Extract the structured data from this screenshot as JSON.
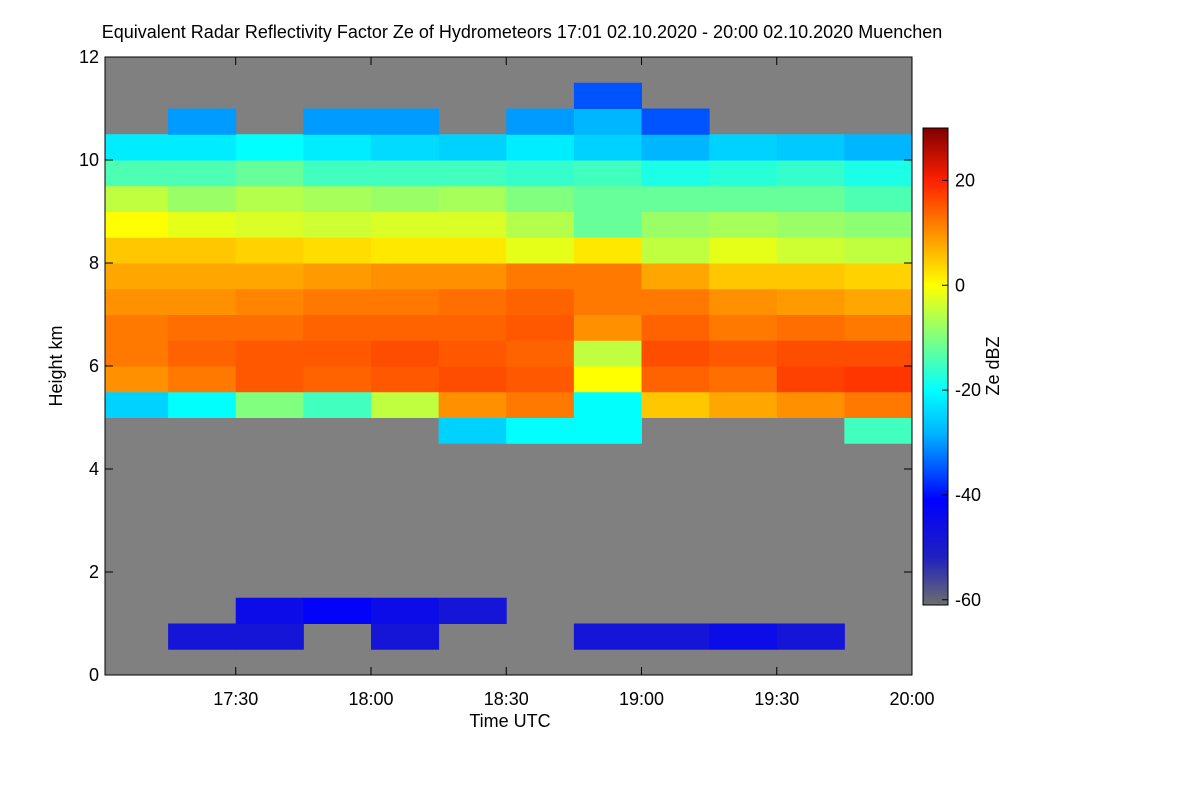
{
  "chart_data": {
    "type": "heatmap",
    "title": "Equivalent Radar Reflectivity Factor Ze of Hydrometeors   17:01 02.10.2020 - 20:00 02.10.2020 Muenchen",
    "x_label": "Time UTC",
    "y_label": "Height km",
    "colorbar_label": "Ze dBZ",
    "xlim": [
      17.0167,
      20.0
    ],
    "xticks": [
      {
        "value": 17.5,
        "label": "17:30"
      },
      {
        "value": 18.0,
        "label": "18:00"
      },
      {
        "value": 18.5,
        "label": "18:30"
      },
      {
        "value": 19.0,
        "label": "19:00"
      },
      {
        "value": 19.5,
        "label": "19:30"
      },
      {
        "value": 20.0,
        "label": "20:00"
      }
    ],
    "ylim": [
      0,
      12
    ],
    "yticks": [
      0,
      2,
      4,
      6,
      8,
      10,
      12
    ],
    "zlim": [
      -61,
      30
    ],
    "zticks": [
      -60,
      -40,
      -20,
      0,
      20
    ],
    "x": [
      17.125,
      17.375,
      17.625,
      17.875,
      18.125,
      18.375,
      18.625,
      18.875,
      19.125,
      19.375,
      19.625,
      19.875
    ],
    "y": [
      0.25,
      0.75,
      1.25,
      1.75,
      2.25,
      2.75,
      3.25,
      3.75,
      4.25,
      4.75,
      5.25,
      5.75,
      6.25,
      6.75,
      7.25,
      7.75,
      8.25,
      8.75,
      9.25,
      9.75,
      10.25,
      10.75,
      11.25,
      11.75
    ],
    "values": [
      [
        null,
        null,
        null,
        null,
        null,
        null,
        null,
        null,
        null,
        null,
        null,
        null
      ],
      [
        null,
        -48,
        -48,
        null,
        -48,
        null,
        null,
        -48,
        -48,
        -45,
        -48,
        null
      ],
      [
        null,
        null,
        -45,
        -42,
        -45,
        -48,
        null,
        null,
        null,
        null,
        null,
        null
      ],
      [
        null,
        null,
        null,
        null,
        null,
        null,
        null,
        null,
        null,
        null,
        null,
        null
      ],
      [
        null,
        null,
        null,
        null,
        null,
        null,
        null,
        null,
        null,
        null,
        null,
        null
      ],
      [
        null,
        null,
        null,
        null,
        null,
        null,
        null,
        null,
        null,
        null,
        null,
        null
      ],
      [
        null,
        null,
        null,
        null,
        null,
        null,
        null,
        null,
        null,
        null,
        null,
        null
      ],
      [
        null,
        null,
        null,
        null,
        null,
        null,
        null,
        null,
        null,
        null,
        null,
        null
      ],
      [
        null,
        null,
        null,
        null,
        null,
        null,
        null,
        null,
        null,
        null,
        null,
        null
      ],
      [
        null,
        null,
        null,
        null,
        null,
        -25,
        -20,
        -20,
        null,
        null,
        null,
        -15
      ],
      [
        -25,
        -20,
        -10,
        -15,
        -5,
        10,
        12,
        -20,
        5,
        8,
        10,
        12
      ],
      [
        10,
        12,
        15,
        14,
        15,
        16,
        15,
        0,
        14,
        13,
        17,
        18
      ],
      [
        12,
        14,
        15,
        15,
        16,
        15,
        14,
        -5,
        16,
        15,
        16,
        16
      ],
      [
        12,
        13,
        13,
        14,
        14,
        14,
        15,
        10,
        14,
        12,
        13,
        12
      ],
      [
        10,
        10,
        11,
        12,
        12,
        13,
        14,
        12,
        12,
        10,
        9,
        8
      ],
      [
        8,
        8,
        8,
        9,
        10,
        10,
        12,
        12,
        8,
        5,
        5,
        4
      ],
      [
        5,
        5,
        4,
        3,
        2,
        2,
        -2,
        2,
        -5,
        -2,
        -4,
        -5
      ],
      [
        0,
        -2,
        -3,
        -4,
        -3,
        -3,
        -6,
        -12,
        -8,
        -7,
        -8,
        -9
      ],
      [
        -5,
        -8,
        -6,
        -7,
        -8,
        -7,
        -10,
        -12,
        -12,
        -12,
        -12,
        -14
      ],
      [
        -14,
        -14,
        -12,
        -15,
        -15,
        -15,
        -16,
        -15,
        -18,
        -17,
        -16,
        -18
      ],
      [
        -22,
        -22,
        -20,
        -22,
        -24,
        -25,
        -22,
        -25,
        -28,
        -25,
        -26,
        -28
      ],
      [
        null,
        -30,
        null,
        -30,
        -30,
        null,
        -30,
        -28,
        -35,
        null,
        null,
        null
      ],
      [
        null,
        null,
        null,
        null,
        null,
        null,
        null,
        -35,
        null,
        null,
        null,
        null
      ],
      [
        null,
        null,
        null,
        null,
        null,
        null,
        null,
        null,
        null,
        null,
        null,
        null
      ]
    ]
  }
}
